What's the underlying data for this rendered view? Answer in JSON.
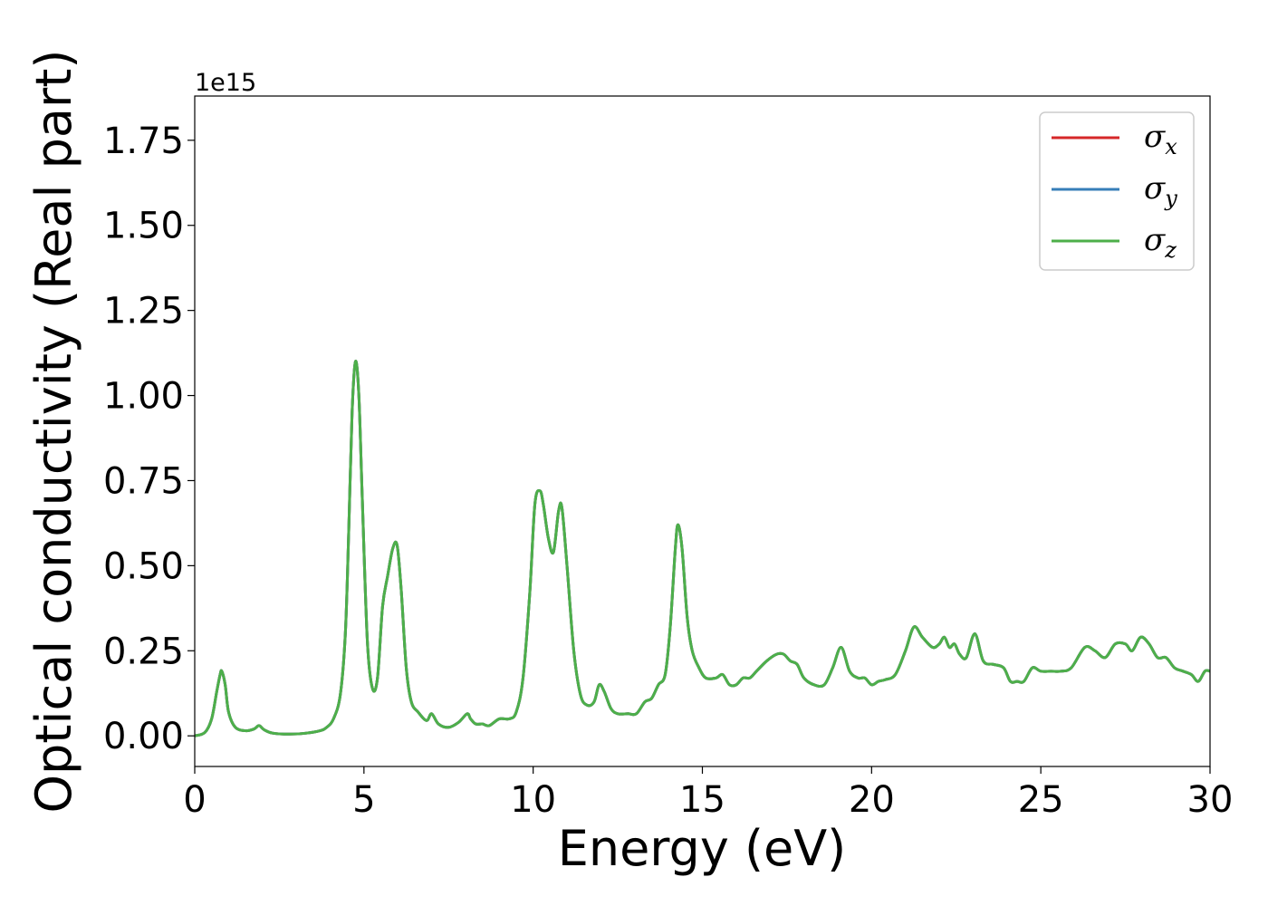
{
  "chart_data": {
    "type": "line",
    "title": "",
    "xlabel": "Energy (eV)",
    "ylabel": "Optical conductivity (Real part)",
    "y_offset_label": "1e15",
    "xlim": [
      0,
      30
    ],
    "ylim": [
      -0.09,
      1.88
    ],
    "xticks": [
      0,
      5,
      10,
      15,
      20,
      25,
      30
    ],
    "xtick_labels": [
      "0",
      "5",
      "10",
      "15",
      "20",
      "25",
      "30"
    ],
    "yticks": [
      0.0,
      0.25,
      0.5,
      0.75,
      1.0,
      1.25,
      1.5,
      1.75
    ],
    "ytick_labels": [
      "0.00",
      "0.25",
      "0.50",
      "0.75",
      "1.00",
      "1.25",
      "1.50",
      "1.75"
    ],
    "grid": false,
    "legend_position": "upper-right",
    "series": [
      {
        "name": "σ",
        "subscript": "x",
        "color": "#d62728",
        "ref": "shared"
      },
      {
        "name": "σ",
        "subscript": "y",
        "color": "#377eb8",
        "ref": "shared"
      },
      {
        "name": "σ",
        "subscript": "z",
        "color": "#4daf4a",
        "ref": "shared"
      }
    ],
    "shared_x": [
      0,
      0.3,
      0.5,
      0.65,
      0.75,
      0.8,
      0.9,
      1.0,
      1.2,
      1.5,
      1.75,
      1.9,
      2.05,
      2.3,
      2.8,
      3.3,
      3.7,
      3.9,
      4.1,
      4.3,
      4.45,
      4.55,
      4.65,
      4.75,
      4.85,
      4.95,
      5.1,
      5.25,
      5.4,
      5.55,
      5.7,
      5.85,
      5.98,
      6.1,
      6.25,
      6.4,
      6.6,
      6.85,
      7.0,
      7.2,
      7.5,
      7.8,
      8.05,
      8.15,
      8.3,
      8.5,
      8.7,
      9.0,
      9.3,
      9.5,
      9.7,
      9.9,
      10.05,
      10.2,
      10.3,
      10.45,
      10.6,
      10.75,
      10.85,
      11.0,
      11.2,
      11.4,
      11.6,
      11.8,
      11.95,
      12.1,
      12.3,
      12.5,
      12.8,
      13.05,
      13.3,
      13.5,
      13.7,
      13.9,
      14.05,
      14.2,
      14.28,
      14.4,
      14.55,
      14.7,
      14.9,
      15.1,
      15.4,
      15.6,
      15.8,
      16.0,
      16.2,
      16.4,
      16.6,
      16.9,
      17.2,
      17.4,
      17.6,
      17.8,
      18.0,
      18.3,
      18.6,
      18.85,
      19.1,
      19.35,
      19.6,
      19.8,
      20.0,
      20.2,
      20.4,
      20.7,
      21.0,
      21.25,
      21.5,
      21.8,
      22.0,
      22.15,
      22.3,
      22.45,
      22.6,
      22.8,
      23.05,
      23.3,
      23.6,
      23.9,
      24.1,
      24.3,
      24.5,
      24.75,
      25.0,
      25.3,
      25.6,
      25.9,
      26.3,
      26.6,
      26.9,
      27.2,
      27.5,
      27.7,
      27.95,
      28.2,
      28.45,
      28.7,
      28.95,
      29.2,
      29.45,
      29.65,
      29.85,
      30.0
    ],
    "shared_y": [
      0.0,
      0.01,
      0.05,
      0.13,
      0.18,
      0.19,
      0.15,
      0.07,
      0.025,
      0.015,
      0.02,
      0.03,
      0.018,
      0.008,
      0.005,
      0.008,
      0.015,
      0.025,
      0.05,
      0.12,
      0.3,
      0.6,
      0.95,
      1.1,
      1.0,
      0.7,
      0.28,
      0.14,
      0.17,
      0.38,
      0.47,
      0.55,
      0.56,
      0.43,
      0.2,
      0.1,
      0.07,
      0.045,
      0.065,
      0.035,
      0.025,
      0.04,
      0.065,
      0.05,
      0.035,
      0.035,
      0.03,
      0.05,
      0.05,
      0.07,
      0.17,
      0.42,
      0.68,
      0.72,
      0.68,
      0.58,
      0.54,
      0.66,
      0.67,
      0.5,
      0.25,
      0.12,
      0.09,
      0.1,
      0.15,
      0.13,
      0.08,
      0.065,
      0.065,
      0.065,
      0.1,
      0.11,
      0.15,
      0.18,
      0.32,
      0.55,
      0.62,
      0.55,
      0.35,
      0.25,
      0.2,
      0.17,
      0.17,
      0.18,
      0.15,
      0.15,
      0.17,
      0.17,
      0.19,
      0.22,
      0.24,
      0.24,
      0.22,
      0.21,
      0.17,
      0.15,
      0.15,
      0.2,
      0.26,
      0.19,
      0.17,
      0.17,
      0.15,
      0.16,
      0.165,
      0.18,
      0.25,
      0.32,
      0.29,
      0.26,
      0.27,
      0.29,
      0.26,
      0.27,
      0.24,
      0.23,
      0.3,
      0.22,
      0.21,
      0.2,
      0.16,
      0.16,
      0.16,
      0.2,
      0.19,
      0.19,
      0.19,
      0.2,
      0.26,
      0.25,
      0.23,
      0.27,
      0.27,
      0.25,
      0.29,
      0.27,
      0.23,
      0.23,
      0.2,
      0.19,
      0.18,
      0.16,
      0.19,
      0.19
    ]
  }
}
